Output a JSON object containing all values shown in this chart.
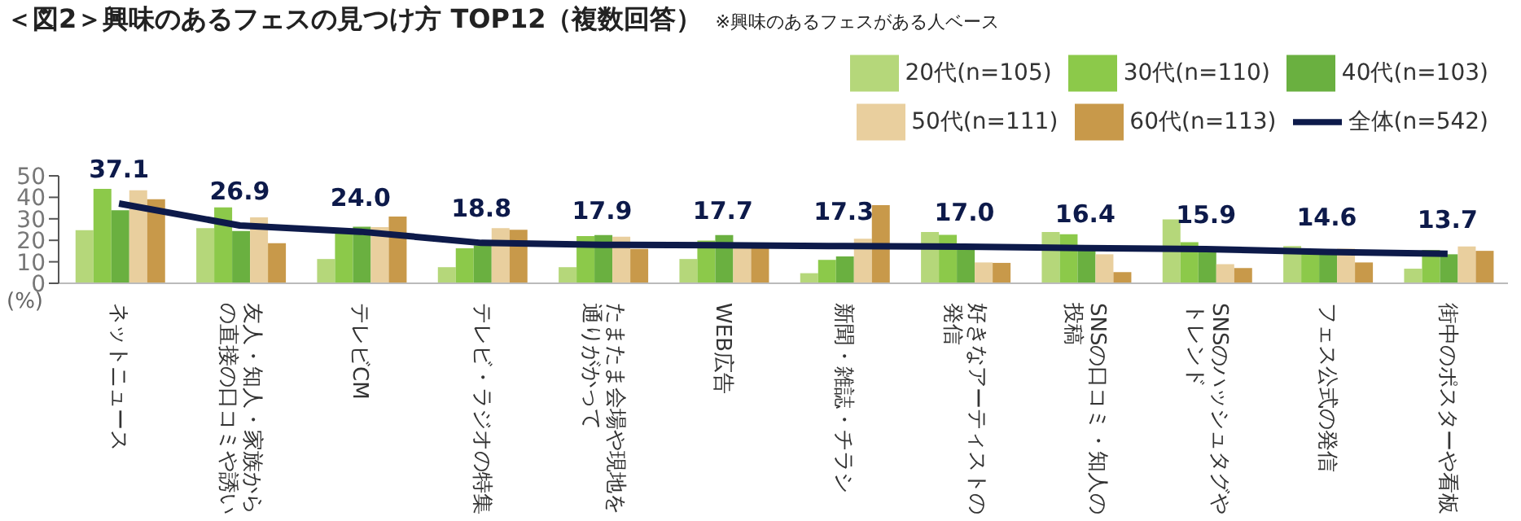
{
  "chart_data": {
    "type": "bar",
    "title": "＜図2＞興味のあるフェスの見つけ方 TOP12（複数回答）",
    "subtitle": "※興味のあるフェスがある人ベース",
    "ylabel": "(%)",
    "categories": [
      "ネットニュース",
      "友人・知人・家族からの直接の口コミや誘い",
      "テレビCM",
      "テレビ・ラジオの特集",
      "たまたま会場や現地を通りがかって",
      "WEB広告",
      "新聞・雑誌・チラシ",
      "好きなアーティストの発信",
      "SNSの口コミ・知人の投稿",
      "SNSのハッシュタグやトレンド",
      "フェス公式の発信",
      "街中のポスターや看板"
    ],
    "series": [
      {
        "name": "20代(n=105)",
        "color": "#b5d77a",
        "values": [
          24.7,
          25.7,
          11.3,
          7.5,
          7.5,
          11.3,
          4.7,
          23.9,
          23.9,
          29.7,
          17.3,
          6.8
        ]
      },
      {
        "name": "30代(n=110)",
        "color": "#8cc94a",
        "values": [
          43.9,
          35.3,
          24.4,
          16.3,
          22.0,
          19.9,
          10.9,
          22.5,
          22.8,
          19.1,
          14.7,
          15.5
        ]
      },
      {
        "name": "40代(n=103)",
        "color": "#6ab040",
        "values": [
          34.0,
          24.3,
          26.3,
          17.6,
          22.4,
          22.4,
          12.5,
          17.7,
          17.5,
          15.3,
          14.9,
          13.5
        ]
      },
      {
        "name": "50代(n=111)",
        "color": "#e9cf9e",
        "values": [
          43.3,
          30.7,
          26.1,
          25.7,
          21.7,
          16.3,
          20.7,
          9.7,
          13.5,
          8.9,
          16.1,
          17.1
        ]
      },
      {
        "name": "60代(n=113)",
        "color": "#c8994a",
        "values": [
          39.1,
          18.7,
          31.1,
          24.9,
          16.0,
          18.5,
          36.4,
          9.5,
          5.2,
          7.1,
          9.7,
          15.1
        ]
      },
      {
        "name": "全体(n=542)",
        "type": "line",
        "color": "#0d1a4a",
        "values": [
          37.1,
          26.9,
          24.0,
          18.8,
          17.9,
          17.7,
          17.3,
          17.0,
          16.4,
          15.9,
          14.6,
          13.7
        ],
        "value_labels": [
          "37.1",
          "26.9",
          "24.0",
          "18.8",
          "17.9",
          "17.7",
          "17.3",
          "17.0",
          "16.4",
          "15.9",
          "14.6",
          "13.7"
        ]
      }
    ],
    "ylim": [
      0,
      50
    ],
    "yticks": [
      0,
      10,
      20,
      30,
      40,
      50
    ],
    "grid": false,
    "legend": "top right",
    "marker": "none",
    "line_style": "solid"
  }
}
